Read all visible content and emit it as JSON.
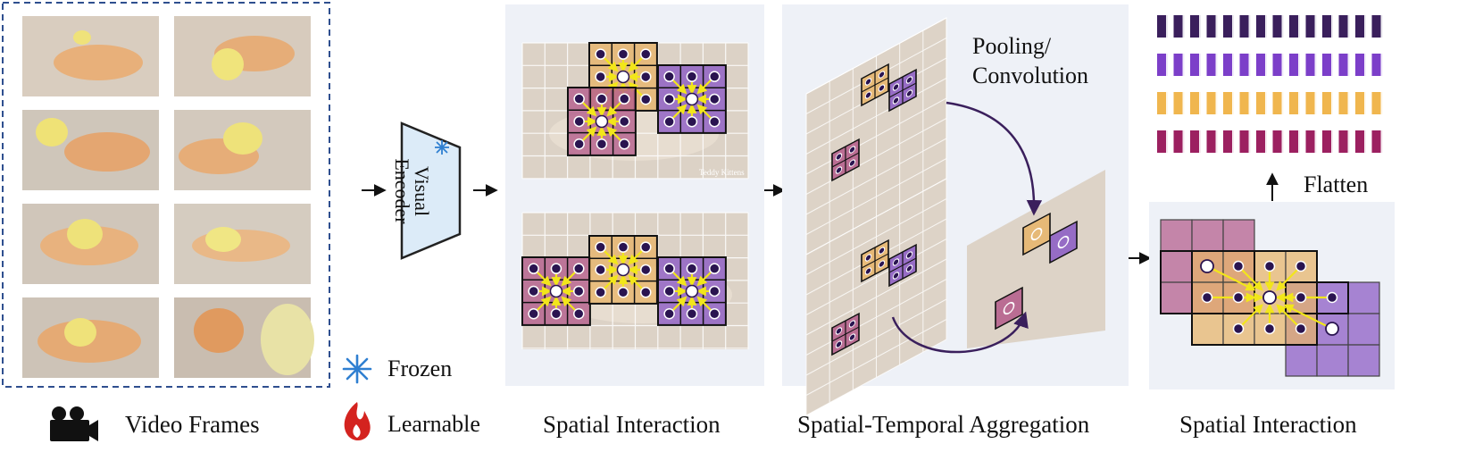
{
  "labels": {
    "video_frames": "Video Frames",
    "spatial_interaction_1": "Spatial Interaction",
    "spatial_temporal": "Spatial-Temporal Aggregation",
    "spatial_interaction_2": "Spatial Interaction",
    "frozen": "Frozen",
    "learnable": "Learnable",
    "pooling": "Pooling/",
    "convolution": "Convolution",
    "flatten": "Flatten",
    "encoder_line1": "Visual",
    "encoder_line2": "Encoder",
    "watermark": "Teddy Kittens"
  },
  "icons": {
    "camera": "video-camera-icon",
    "frozen": "snowflake-icon",
    "learnable": "flame-icon"
  },
  "colors": {
    "tan": "#e8b468",
    "mauve": "#b45b8a",
    "violet": "#8a59c4",
    "dark_purple": "#3a1f5c",
    "yellow_arrow": "#f2e61a",
    "frame_border": "#2f4f8f",
    "panel_bg": "#eef1f7",
    "encoder_fill": "#dcebf8"
  },
  "token_rows": [
    {
      "color": "#3a1f5c",
      "count": 14
    },
    {
      "color": "#7c3fc9",
      "count": 14
    },
    {
      "color": "#f0b64e",
      "count": 14
    },
    {
      "color": "#9c2060",
      "count": 14
    }
  ]
}
